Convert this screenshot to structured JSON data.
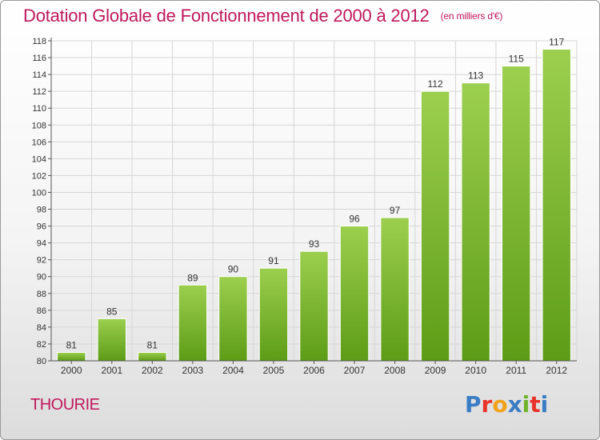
{
  "header": {
    "title": "Dotation Globale de Fonctionnement de 2000 à 2012",
    "subtitle": "(en milliers d'€)"
  },
  "footer": {
    "commune": "THOURIE",
    "logo_text": "Proxiti",
    "logo_colors": [
      "#3b7dc4",
      "#e8332a",
      "#f0a21b",
      "#3b7dc4",
      "#6fb32b",
      "#e8332a",
      "#3b7dc4"
    ]
  },
  "chart_data": {
    "type": "bar",
    "categories": [
      "2000",
      "2001",
      "2002",
      "2003",
      "2004",
      "2005",
      "2006",
      "2007",
      "2008",
      "2009",
      "2010",
      "2011",
      "2012"
    ],
    "values": [
      81,
      85,
      81,
      89,
      90,
      91,
      93,
      96,
      97,
      112,
      113,
      115,
      117
    ],
    "title": "Dotation Globale de Fonctionnement de 2000 à 2012",
    "subtitle": "(en milliers d'€)",
    "ylim": [
      80,
      118
    ],
    "ytick_step": 2,
    "grid": true,
    "legend": "none",
    "colors": {
      "bar_top": "#9ccf4e",
      "bar_bottom": "#5d9c16",
      "grid": "#d6d6d6",
      "axis": "#555555",
      "text": "#333333"
    }
  }
}
